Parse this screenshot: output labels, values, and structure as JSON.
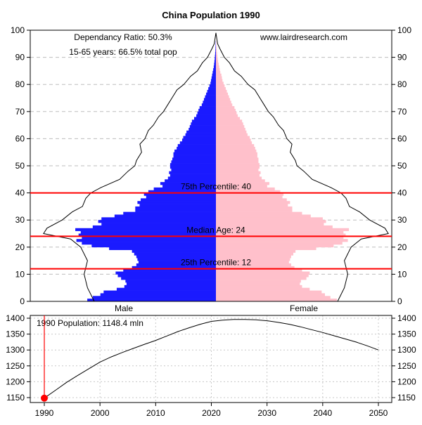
{
  "chart_data": [
    {
      "type": "bar",
      "subtype": "population-pyramid",
      "title": "China Population 1990",
      "annotations": {
        "dependency_ratio": "Dependancy Ratio: 50.3%",
        "working_age": "15-65 years: 66.5% total pop",
        "source": "www.lairdresearch.com"
      },
      "y_axis": {
        "range": [
          0,
          100
        ],
        "ticks": [
          "0",
          "10",
          "20",
          "30",
          "40",
          "50",
          "60",
          "70",
          "80",
          "90",
          "100"
        ],
        "both_sides": true
      },
      "grid": {
        "horizontal_dashed": true
      },
      "groups": {
        "male_label": "Male",
        "female_label": "Female"
      },
      "colors": {
        "male": "#1a1aff",
        "female": "#ffc0cb",
        "line": "#000000",
        "percentile": "#ff0000"
      },
      "percentiles": [
        {
          "age": 40,
          "label": "75th Percentile: 40"
        },
        {
          "age": 24,
          "label": "Median Age: 24"
        },
        {
          "age": 12,
          "label": "25th Percentile: 12"
        }
      ],
      "ages": [
        0,
        1,
        2,
        3,
        4,
        5,
        6,
        7,
        8,
        9,
        10,
        11,
        12,
        13,
        14,
        15,
        16,
        17,
        18,
        19,
        20,
        21,
        22,
        23,
        24,
        25,
        26,
        27,
        28,
        29,
        30,
        31,
        32,
        33,
        34,
        35,
        36,
        37,
        38,
        39,
        40,
        41,
        42,
        43,
        44,
        45,
        46,
        47,
        48,
        49,
        50,
        51,
        52,
        53,
        54,
        55,
        56,
        57,
        58,
        59,
        60,
        61,
        62,
        63,
        64,
        65,
        66,
        67,
        68,
        69,
        70,
        71,
        72,
        73,
        74,
        75,
        76,
        77,
        78,
        79,
        80,
        81,
        82,
        83,
        84,
        85,
        86,
        87,
        88,
        89,
        90,
        91,
        92,
        93,
        94,
        95
      ],
      "series": [
        {
          "group": "male",
          "values": [
            11.8,
            11.3,
            10.6,
            10.3,
            9.1,
            8.4,
            8.2,
            8.3,
            8.7,
            9.0,
            9.2,
            8.5,
            7.7,
            7.3,
            7.1,
            7.2,
            7.3,
            7.5,
            7.7,
            9.8,
            11.4,
            12.3,
            12.8,
            12.3,
            12.6,
            12.4,
            12.9,
            11.3,
            10.5,
            10.8,
            10.5,
            9.3,
            8.5,
            7.4,
            7.4,
            7.0,
            7.2,
            6.9,
            6.4,
            6.6,
            6.2,
            5.7,
            4.9,
            5.1,
            4.7,
            4.4,
            4.2,
            4.3,
            4.1,
            4.2,
            4.2,
            4.1,
            4.0,
            3.9,
            3.9,
            3.8,
            3.6,
            3.5,
            3.3,
            3.1,
            3.0,
            2.8,
            2.7,
            2.5,
            2.4,
            2.3,
            2.2,
            2.0,
            1.8,
            1.7,
            1.6,
            1.5,
            1.3,
            1.2,
            1.1,
            1.0,
            0.9,
            0.8,
            0.7,
            0.6,
            0.5,
            0.45,
            0.4,
            0.35,
            0.3,
            0.25,
            0.2,
            0.17,
            0.14,
            0.11,
            0.09,
            0.07,
            0.05,
            0.04,
            0.03,
            0.02
          ]
        },
        {
          "group": "female",
          "values": [
            11.1,
            10.5,
            10.0,
            9.7,
            8.6,
            7.9,
            7.7,
            7.8,
            8.3,
            8.5,
            8.6,
            7.9,
            7.2,
            6.9,
            6.7,
            6.8,
            6.9,
            7.1,
            7.3,
            9.2,
            10.8,
            11.6,
            12.1,
            11.7,
            11.9,
            11.7,
            12.2,
            10.7,
            9.9,
            10.1,
            9.8,
            8.7,
            7.9,
            7.0,
            7.0,
            6.6,
            6.8,
            6.5,
            6.1,
            6.2,
            5.9,
            5.4,
            4.7,
            4.9,
            4.5,
            4.2,
            4.0,
            4.1,
            3.9,
            4.0,
            4.0,
            3.9,
            3.9,
            3.8,
            3.8,
            3.7,
            3.6,
            3.5,
            3.3,
            3.2,
            3.1,
            2.9,
            2.8,
            2.7,
            2.6,
            2.5,
            2.4,
            2.2,
            2.0,
            1.9,
            1.8,
            1.7,
            1.5,
            1.4,
            1.3,
            1.2,
            1.1,
            1.0,
            0.9,
            0.8,
            0.7,
            0.6,
            0.55,
            0.5,
            0.4,
            0.35,
            0.3,
            0.25,
            0.2,
            0.16,
            0.13,
            0.1,
            0.08,
            0.06,
            0.04,
            0.03
          ]
        }
      ],
      "outline_ages": [
        0,
        5,
        10,
        15,
        20,
        23,
        25,
        27,
        30,
        33,
        35,
        38,
        40,
        42,
        45,
        48,
        50,
        52,
        55,
        58,
        60,
        63,
        65,
        68,
        70,
        73,
        75,
        78,
        80,
        83,
        85,
        88,
        90,
        93,
        95
      ],
      "outline_values": [
        7.2,
        7.6,
        7.8,
        7.6,
        8.0,
        8.6,
        10.2,
        10.0,
        9.1,
        8.5,
        7.9,
        7.7,
        7.4,
        6.8,
        5.7,
        5.2,
        4.8,
        4.7,
        4.4,
        4.5,
        4.2,
        4.0,
        3.7,
        3.4,
        3.1,
        2.8,
        2.6,
        2.3,
        1.9,
        1.5,
        1.1,
        0.8,
        0.5,
        0.25,
        0.1
      ]
    },
    {
      "type": "line",
      "title": "",
      "annotation": "1990 Population: 1148.4 mln",
      "x_ticks": [
        "1990",
        "2000",
        "2010",
        "2020",
        "2030",
        "2040",
        "2050"
      ],
      "y_ticks": [
        "1150",
        "1200",
        "1250",
        "1300",
        "1350",
        "1400"
      ],
      "xlim": [
        1990,
        2050
      ],
      "ylim": [
        1150,
        1400
      ],
      "x": [
        1990,
        1992,
        1994,
        1996,
        1998,
        2000,
        2002,
        2004,
        2006,
        2008,
        2010,
        2012,
        2014,
        2016,
        2018,
        2020,
        2022,
        2024,
        2026,
        2028,
        2030,
        2032,
        2034,
        2036,
        2038,
        2040,
        2042,
        2044,
        2046,
        2048,
        2050
      ],
      "y": [
        1148.4,
        1173,
        1198,
        1220,
        1241,
        1262,
        1278,
        1292,
        1305,
        1318,
        1330,
        1344,
        1358,
        1370,
        1381,
        1390,
        1394,
        1396,
        1396,
        1395,
        1392,
        1387,
        1381,
        1373,
        1364,
        1355,
        1345,
        1335,
        1325,
        1313,
        1300
      ],
      "highlight": {
        "x": 1990,
        "y": 1148.4
      },
      "grid": {
        "dotted": true
      }
    }
  ]
}
